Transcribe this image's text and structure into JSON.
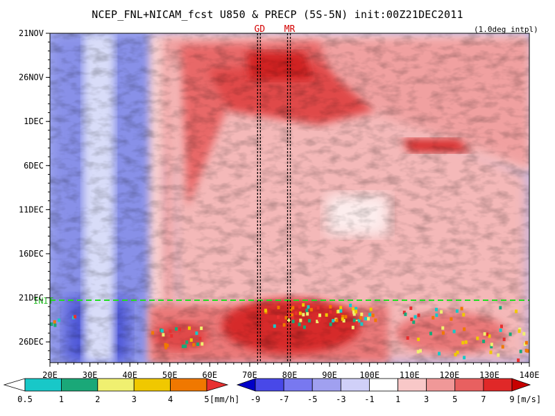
{
  "page": {
    "title": "NCEP_FNL+NICAM_fcst U850 & PRECP (5S-5N) init:00Z21DEC2011",
    "note": "(1.0deg intpl)"
  },
  "chart_data": {
    "type": "heatmap",
    "title": "NCEP_FNL+NICAM_fcst U850 & PRECP (5S-5N) init:00Z21DEC2011",
    "xlabel": "",
    "ylabel": "",
    "x_range": [
      "20E",
      "140E"
    ],
    "x_ticks": [
      "20E",
      "30E",
      "40E",
      "50E",
      "60E",
      "70E",
      "80E",
      "90E",
      "100E",
      "110E",
      "120E",
      "130E",
      "140E"
    ],
    "y_range": [
      "21NOV",
      "28DEC"
    ],
    "y_ticks": [
      "21NOV",
      "26NOV",
      "1DEC",
      "6DEC",
      "11DEC",
      "16DEC",
      "21DEC",
      "26DEC"
    ],
    "init_label": "INIT",
    "markers": [
      {
        "label": "GD",
        "lon": "72.5E"
      },
      {
        "label": "MR",
        "lon": "80E"
      }
    ],
    "colorbars": [
      {
        "name": "PRECP",
        "unit": "[mm/h]",
        "labels": [
          "0.5",
          "1",
          "2",
          "3",
          "4",
          "5"
        ],
        "colors": [
          "#18c8c8",
          "#1aa878",
          "#f0f070",
          "#f0c800",
          "#f07800",
          "#e83030"
        ]
      },
      {
        "name": "U850",
        "unit": "[m/s]",
        "labels": [
          "-9",
          "-7",
          "-5",
          "-3",
          "-1",
          "1",
          "3",
          "5",
          "7",
          "9"
        ],
        "colors": [
          "#0000c8",
          "#4848e8",
          "#7878f0",
          "#a0a0f0",
          "#d0d0f8",
          "#ffffff",
          "#f8c8c8",
          "#f09898",
          "#e86060",
          "#e02828",
          "#c80000"
        ]
      }
    ]
  }
}
